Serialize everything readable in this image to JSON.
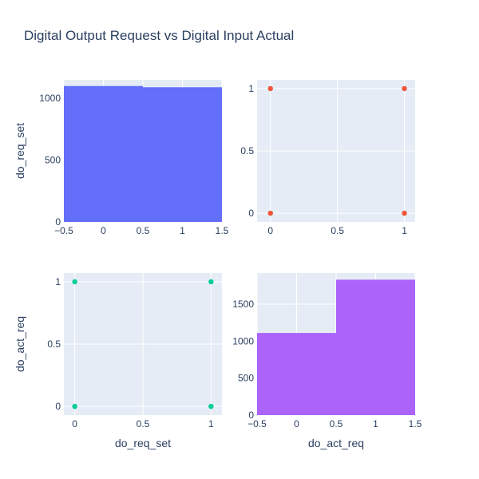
{
  "chart_data": {
    "type": "scatter-matrix",
    "title": "Digital Output Request vs Digital Input Actual",
    "variables": [
      "do_req_set",
      "do_act_req"
    ],
    "colors": {
      "hist_do_req_set": "#636efa",
      "scatter_top_right": "#ef553b",
      "scatter_bottom_left": "#00cc96",
      "hist_do_act_req": "#ab63fa",
      "plot_bg": "#e5ecf6",
      "grid": "#ffffff",
      "text": "#2a3f5f"
    },
    "panels": [
      {
        "id": "top-left",
        "type": "histogram",
        "xlim": [
          -0.5,
          1.5
        ],
        "ylim": [
          0,
          1150
        ],
        "xticks": [
          -0.5,
          0,
          0.5,
          1,
          1.5
        ],
        "xtick_labels": [
          "−0.5",
          "0",
          "0.5",
          "1",
          "1.5"
        ],
        "yticks": [
          0,
          500,
          1000
        ],
        "ytick_labels": [
          "0",
          "500",
          "1000"
        ],
        "ylabel": "do_req_set",
        "xlabel": "",
        "bins": [
          {
            "x0": -0.5,
            "x1": 0.5,
            "count": 1100
          },
          {
            "x0": 0.5,
            "x1": 1.5,
            "count": 1090
          }
        ]
      },
      {
        "id": "top-right",
        "type": "scatter",
        "xlim": [
          -0.1,
          1.08
        ],
        "ylim": [
          -0.07,
          1.07
        ],
        "xticks": [
          0,
          0.5,
          1
        ],
        "xtick_labels": [
          "0",
          "0.5",
          "1"
        ],
        "yticks": [
          0,
          0.5,
          1
        ],
        "ytick_labels": [
          "0",
          "0.5",
          "1"
        ],
        "ylabel": "",
        "xlabel": "",
        "points": [
          {
            "x": 0,
            "y": 0
          },
          {
            "x": 0,
            "y": 1
          },
          {
            "x": 1,
            "y": 0
          },
          {
            "x": 1,
            "y": 1
          }
        ]
      },
      {
        "id": "bottom-left",
        "type": "scatter",
        "xlim": [
          -0.08,
          1.08
        ],
        "ylim": [
          -0.07,
          1.07
        ],
        "xticks": [
          0,
          0.5,
          1
        ],
        "xtick_labels": [
          "0",
          "0.5",
          "1"
        ],
        "yticks": [
          0,
          0.5,
          1
        ],
        "ytick_labels": [
          "0",
          "0.5",
          "1"
        ],
        "ylabel": "do_act_req",
        "xlabel": "do_req_set",
        "points": [
          {
            "x": 0,
            "y": 0
          },
          {
            "x": 0,
            "y": 1
          },
          {
            "x": 1,
            "y": 0
          },
          {
            "x": 1,
            "y": 1
          }
        ]
      },
      {
        "id": "bottom-right",
        "type": "histogram",
        "xlim": [
          -0.5,
          1.5
        ],
        "ylim": [
          0,
          1920
        ],
        "xticks": [
          -0.5,
          0,
          0.5,
          1,
          1.5
        ],
        "xtick_labels": [
          "−0.5",
          "0",
          "0.5",
          "1",
          "1.5"
        ],
        "yticks": [
          0,
          500,
          1000,
          1500
        ],
        "ytick_labels": [
          "0",
          "500",
          "1000",
          "1500"
        ],
        "ylabel": "",
        "xlabel": "do_act_req",
        "bins": [
          {
            "x0": -0.5,
            "x1": 0.5,
            "count": 1110
          },
          {
            "x0": 0.5,
            "x1": 1.5,
            "count": 1830
          }
        ]
      }
    ]
  }
}
